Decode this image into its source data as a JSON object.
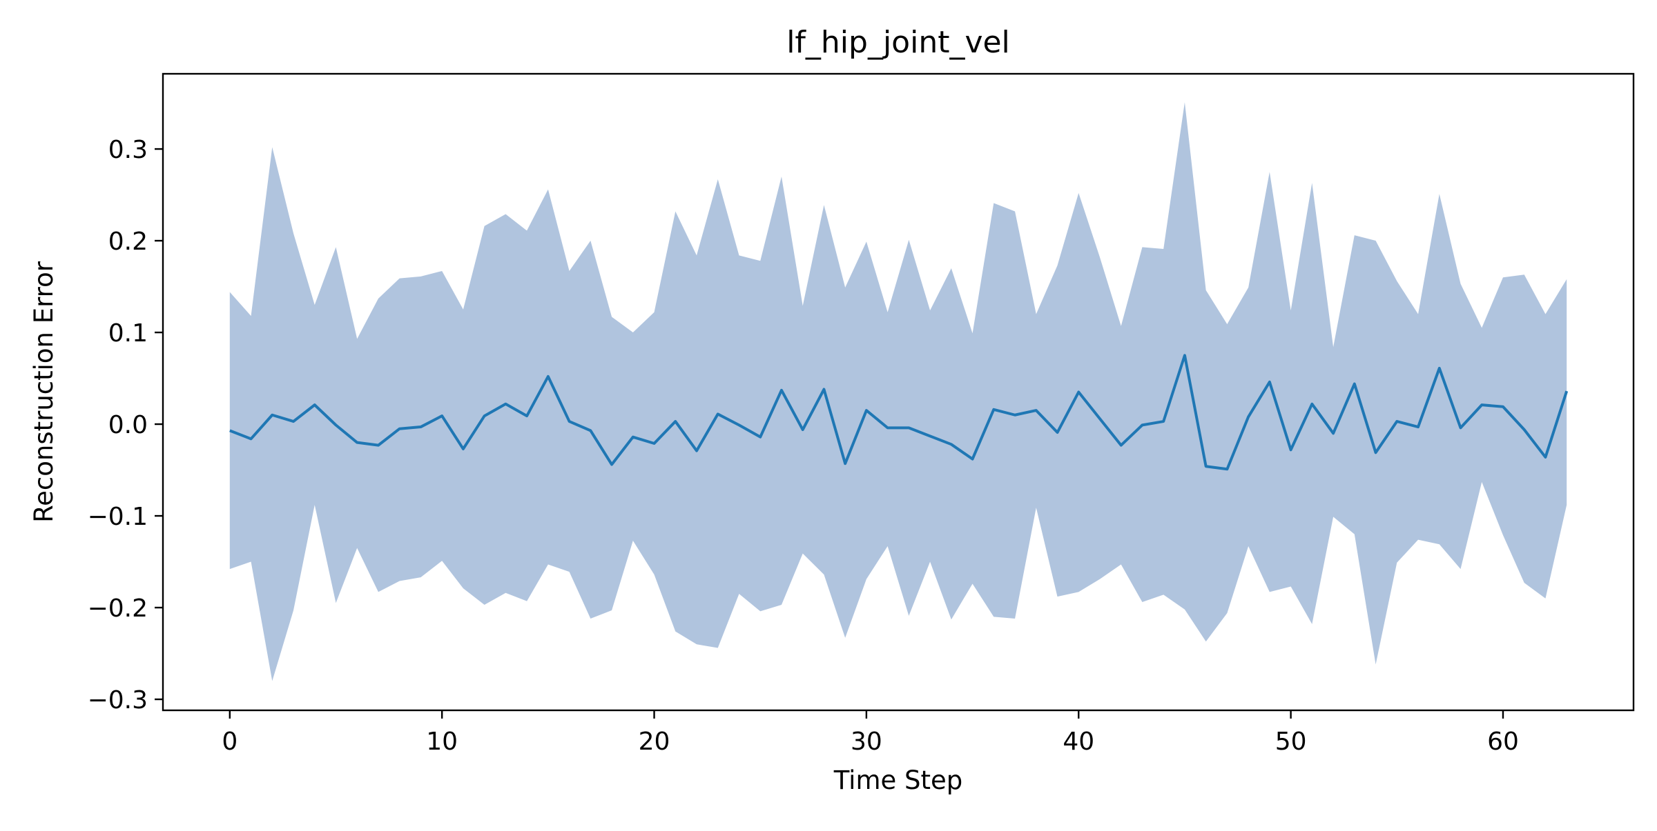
{
  "chart_data": {
    "type": "line",
    "title": "lf_hip_joint_vel",
    "xlabel": "Time Step",
    "ylabel": "Reconstruction Error",
    "xlim": [
      -3.15,
      66.15
    ],
    "ylim": [
      -0.312,
      0.382
    ],
    "x_ticks": [
      0,
      10,
      20,
      30,
      40,
      50,
      60
    ],
    "x_tick_labels": [
      "0",
      "10",
      "20",
      "30",
      "40",
      "50",
      "60"
    ],
    "y_ticks": [
      -0.3,
      -0.2,
      -0.1,
      0.0,
      0.1,
      0.2,
      0.3
    ],
    "y_tick_labels": [
      "−0.3",
      "−0.2",
      "−0.1",
      "0.0",
      "0.1",
      "0.2",
      "0.3"
    ],
    "grid": false,
    "legend": "none",
    "colors": {
      "line": "#1f77b4",
      "band": "#b0c4de",
      "axes": "#000000"
    },
    "series": [
      {
        "x": [
          0,
          1,
          2,
          3,
          4,
          5,
          6,
          7,
          8,
          9,
          10,
          11,
          12,
          13,
          14,
          15,
          16,
          17,
          18,
          19,
          20,
          21,
          22,
          23,
          24,
          25,
          26,
          27,
          28,
          29,
          30,
          31,
          32,
          33,
          34,
          35,
          36,
          37,
          38,
          39,
          40,
          41,
          42,
          43,
          44,
          45,
          46,
          47,
          48,
          49,
          50,
          51,
          52,
          53,
          54,
          55,
          56,
          57,
          58,
          59,
          60,
          61,
          62,
          63
        ],
        "mean": [
          -0.007,
          -0.016,
          0.01,
          0.003,
          0.021,
          -0.001,
          -0.02,
          -0.023,
          -0.005,
          -0.003,
          0.009,
          -0.027,
          0.009,
          0.022,
          0.009,
          0.052,
          0.003,
          -0.007,
          -0.044,
          -0.014,
          -0.021,
          0.003,
          -0.029,
          0.011,
          -0.001,
          -0.014,
          0.037,
          -0.006,
          0.038,
          -0.043,
          0.015,
          -0.004,
          -0.004,
          -0.013,
          -0.022,
          -0.038,
          0.016,
          0.01,
          0.015,
          -0.009,
          0.035,
          0.006,
          -0.023,
          -0.001,
          0.003,
          0.075,
          -0.046,
          -0.049,
          0.008,
          0.046,
          -0.028,
          0.022,
          -0.01,
          0.044,
          -0.031,
          0.003,
          -0.003,
          0.061,
          -0.004,
          0.021,
          0.019,
          -0.006,
          -0.036,
          0.036
        ],
        "upper": [
          0.144,
          0.118,
          0.302,
          0.208,
          0.13,
          0.193,
          0.093,
          0.137,
          0.159,
          0.161,
          0.167,
          0.125,
          0.216,
          0.229,
          0.211,
          0.256,
          0.167,
          0.2,
          0.117,
          0.1,
          0.122,
          0.232,
          0.184,
          0.267,
          0.184,
          0.178,
          0.27,
          0.129,
          0.239,
          0.149,
          0.199,
          0.122,
          0.201,
          0.124,
          0.17,
          0.099,
          0.241,
          0.232,
          0.12,
          0.173,
          0.252,
          0.182,
          0.107,
          0.193,
          0.191,
          0.351,
          0.146,
          0.109,
          0.149,
          0.275,
          0.124,
          0.263,
          0.084,
          0.206,
          0.2,
          0.156,
          0.12,
          0.251,
          0.153,
          0.105,
          0.16,
          0.163,
          0.12,
          0.158
        ],
        "lower": [
          -0.158,
          -0.15,
          -0.28,
          -0.203,
          -0.088,
          -0.195,
          -0.135,
          -0.183,
          -0.171,
          -0.167,
          -0.149,
          -0.179,
          -0.197,
          -0.184,
          -0.193,
          -0.153,
          -0.161,
          -0.212,
          -0.203,
          -0.127,
          -0.164,
          -0.226,
          -0.24,
          -0.244,
          -0.185,
          -0.204,
          -0.197,
          -0.141,
          -0.164,
          -0.233,
          -0.169,
          -0.133,
          -0.209,
          -0.15,
          -0.213,
          -0.174,
          -0.21,
          -0.212,
          -0.091,
          -0.188,
          -0.183,
          -0.169,
          -0.153,
          -0.194,
          -0.186,
          -0.202,
          -0.237,
          -0.206,
          -0.133,
          -0.183,
          -0.177,
          -0.218,
          -0.101,
          -0.12,
          -0.262,
          -0.151,
          -0.126,
          -0.131,
          -0.158,
          -0.063,
          -0.121,
          -0.173,
          -0.19,
          -0.088
        ]
      }
    ]
  }
}
